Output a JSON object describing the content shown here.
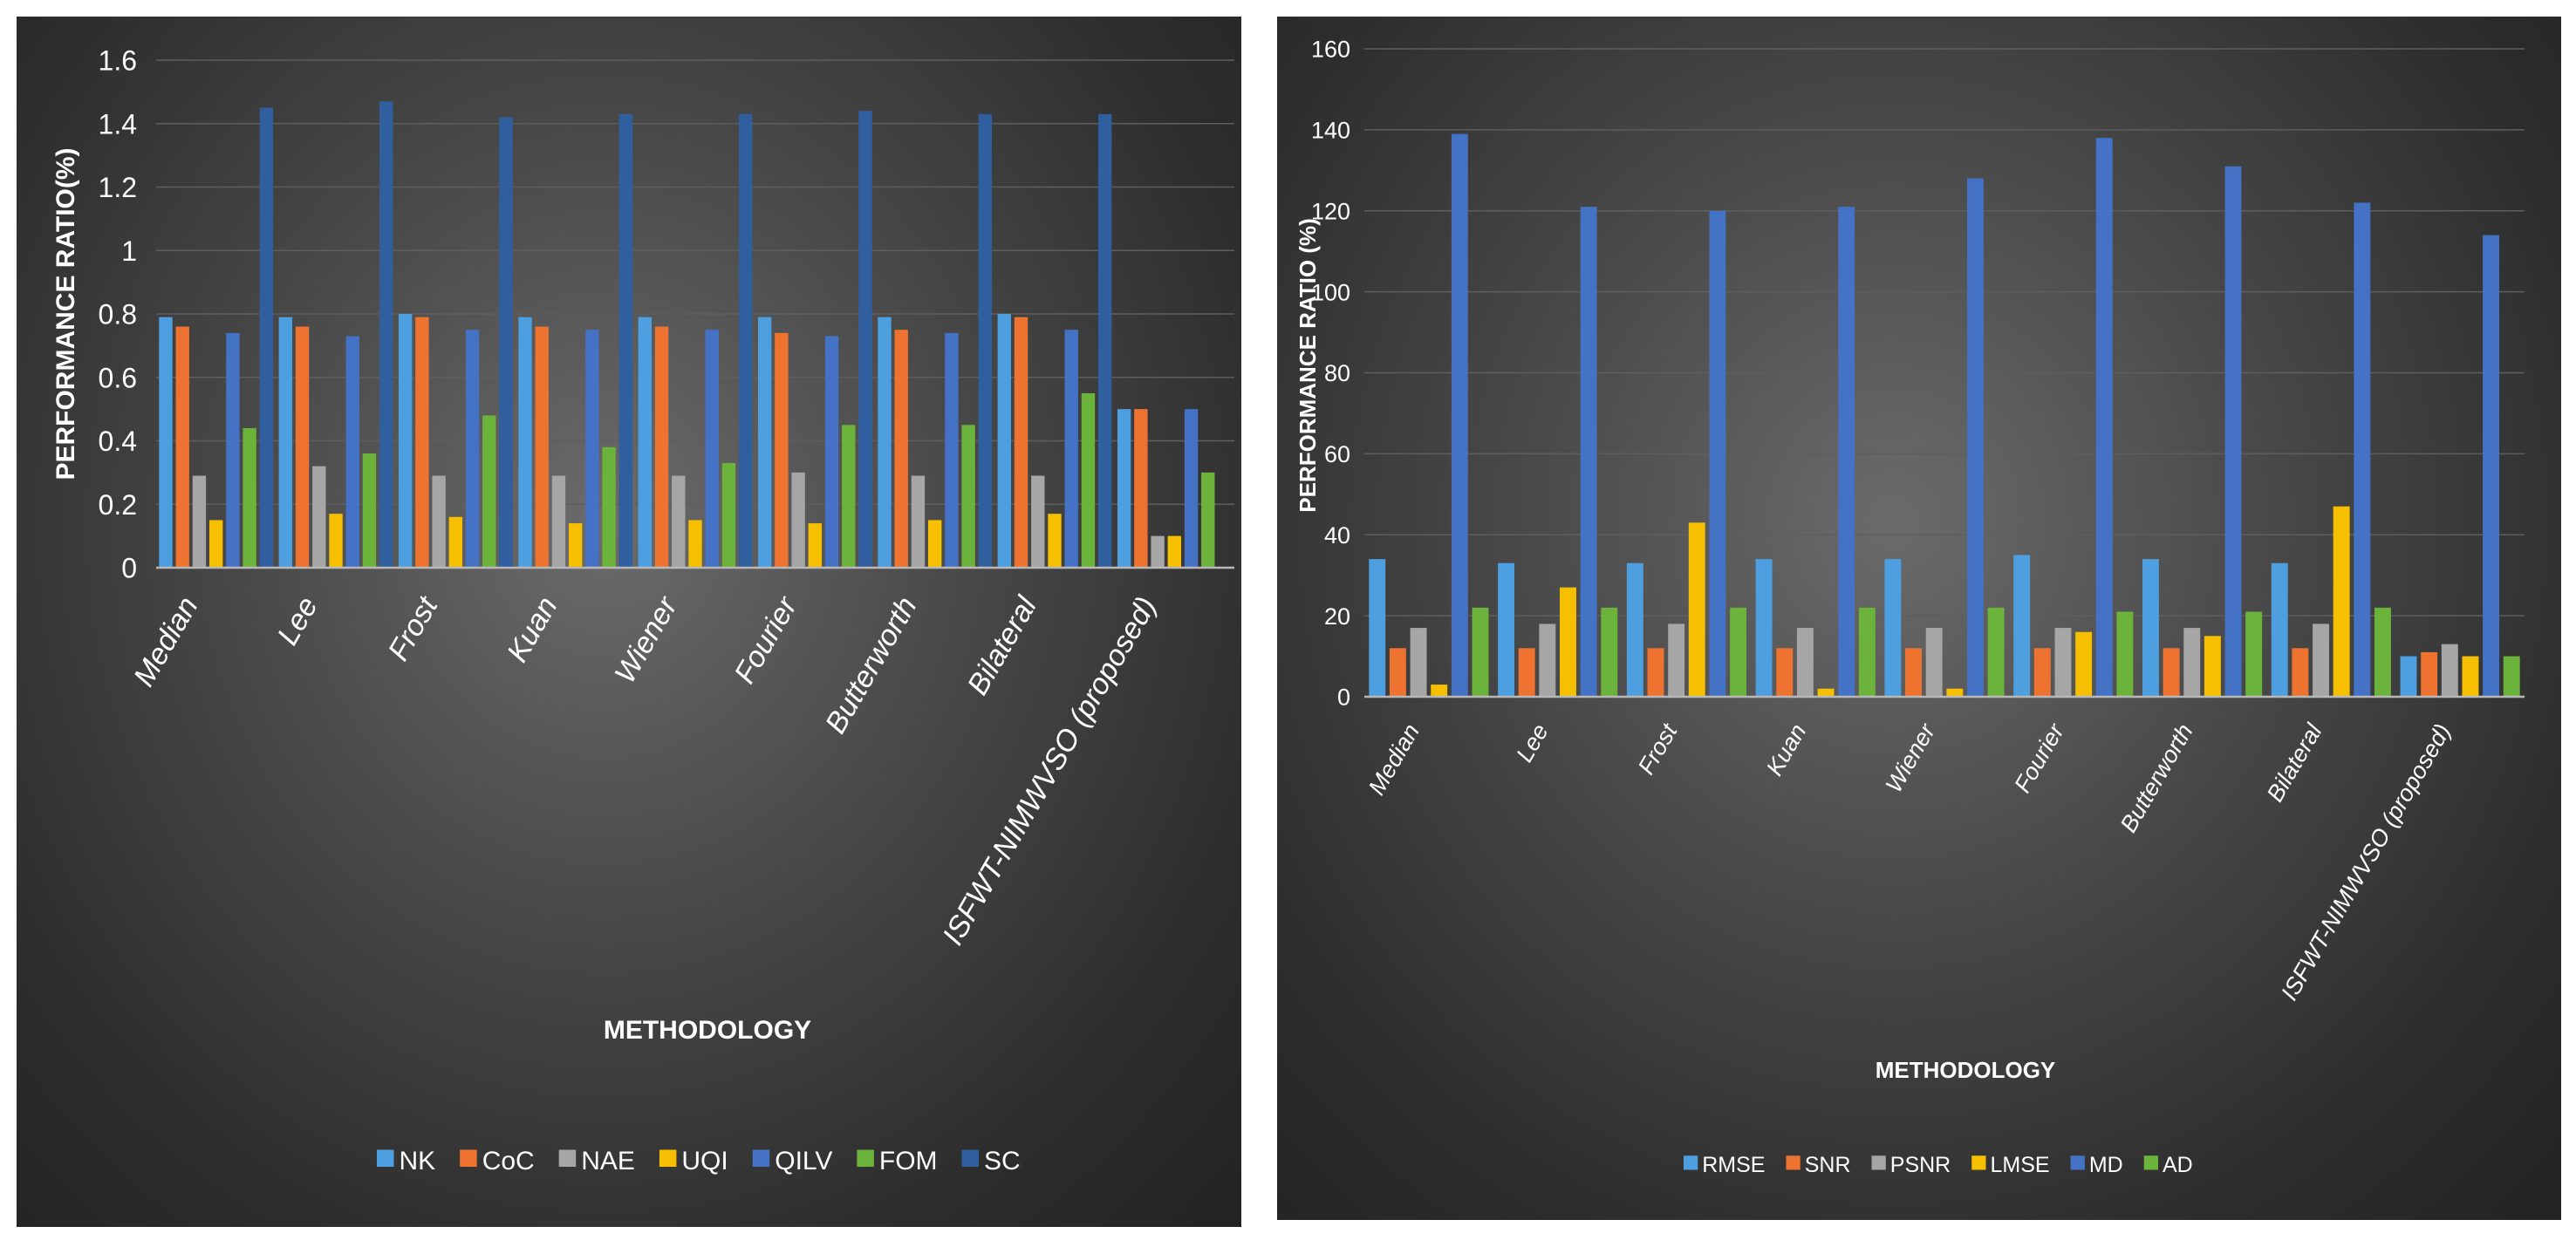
{
  "chart_data": [
    {
      "type": "bar",
      "title": "",
      "xlabel": "METHODOLOGY",
      "ylabel": "PERFORMANCE RATIO(%)",
      "ylim": [
        0,
        1.6
      ],
      "yticks": [
        "0",
        "0.2",
        "0.4",
        "0.6",
        "0.8",
        "1",
        "1.2",
        "1.4",
        "1.6"
      ],
      "grid": true,
      "legend_position": "bottom",
      "categories": [
        "Median",
        "Lee",
        "Frost",
        "Kuan",
        "Wiener",
        "Fourier",
        "Butterworth",
        "Bilateral",
        "ISFWT-NIMWVSO (proposed)"
      ],
      "series": [
        {
          "name": "NK",
          "color": "#4e9fe0",
          "values": [
            0.79,
            0.79,
            0.8,
            0.79,
            0.79,
            0.79,
            0.79,
            0.8,
            0.5
          ]
        },
        {
          "name": "CoC",
          "color": "#ee7330",
          "values": [
            0.76,
            0.76,
            0.79,
            0.76,
            0.76,
            0.74,
            0.75,
            0.79,
            0.5
          ]
        },
        {
          "name": "NAE",
          "color": "#a6a6a6",
          "values": [
            0.29,
            0.32,
            0.29,
            0.29,
            0.29,
            0.3,
            0.29,
            0.29,
            0.1
          ]
        },
        {
          "name": "UQI",
          "color": "#f6c000",
          "values": [
            0.15,
            0.17,
            0.16,
            0.14,
            0.15,
            0.14,
            0.15,
            0.17,
            0.1
          ]
        },
        {
          "name": "QILV",
          "color": "#4472c4",
          "values": [
            0.74,
            0.73,
            0.75,
            0.75,
            0.75,
            0.73,
            0.74,
            0.75,
            0.5
          ]
        },
        {
          "name": "FOM",
          "color": "#6bb33b",
          "values": [
            0.44,
            0.36,
            0.48,
            0.38,
            0.33,
            0.45,
            0.45,
            0.55,
            0.3
          ]
        },
        {
          "name": "SC",
          "color": "#2f5f9e",
          "values": [
            1.45,
            1.47,
            1.42,
            1.43,
            1.43,
            1.44,
            1.43,
            1.43,
            0
          ]
        }
      ]
    },
    {
      "type": "bar",
      "title": "",
      "xlabel": "METHODOLOGY",
      "ylabel": "PERFORMANCE RATIO (%)",
      "ylim": [
        0,
        160
      ],
      "yticks": [
        "0",
        "20",
        "40",
        "60",
        "80",
        "100",
        "120",
        "140",
        "160"
      ],
      "grid": true,
      "legend_position": "bottom",
      "categories": [
        "Median",
        "Lee",
        "Frost",
        "Kuan",
        "Wiener",
        "Fourier",
        "Butterworth",
        "Bilateral",
        "ISFWT-NIMWVSO (proposed)"
      ],
      "series": [
        {
          "name": "RMSE",
          "color": "#4e9fe0",
          "values": [
            34,
            33,
            33,
            34,
            34,
            35,
            34,
            33,
            10
          ]
        },
        {
          "name": "SNR",
          "color": "#ee7330",
          "values": [
            12,
            12,
            12,
            12,
            12,
            12,
            12,
            12,
            11
          ]
        },
        {
          "name": "PSNR",
          "color": "#a6a6a6",
          "values": [
            17,
            18,
            18,
            17,
            17,
            17,
            17,
            18,
            13
          ]
        },
        {
          "name": "LMSE",
          "color": "#f6c000",
          "values": [
            3,
            27,
            43,
            2,
            2,
            16,
            15,
            47,
            10
          ]
        },
        {
          "name": "MD",
          "color": "#4472c4",
          "values": [
            139,
            121,
            120,
            121,
            128,
            138,
            131,
            122,
            114
          ]
        },
        {
          "name": "AD",
          "color": "#6bb33b",
          "values": [
            22,
            22,
            22,
            22,
            22,
            21,
            21,
            22,
            10
          ]
        }
      ]
    }
  ]
}
